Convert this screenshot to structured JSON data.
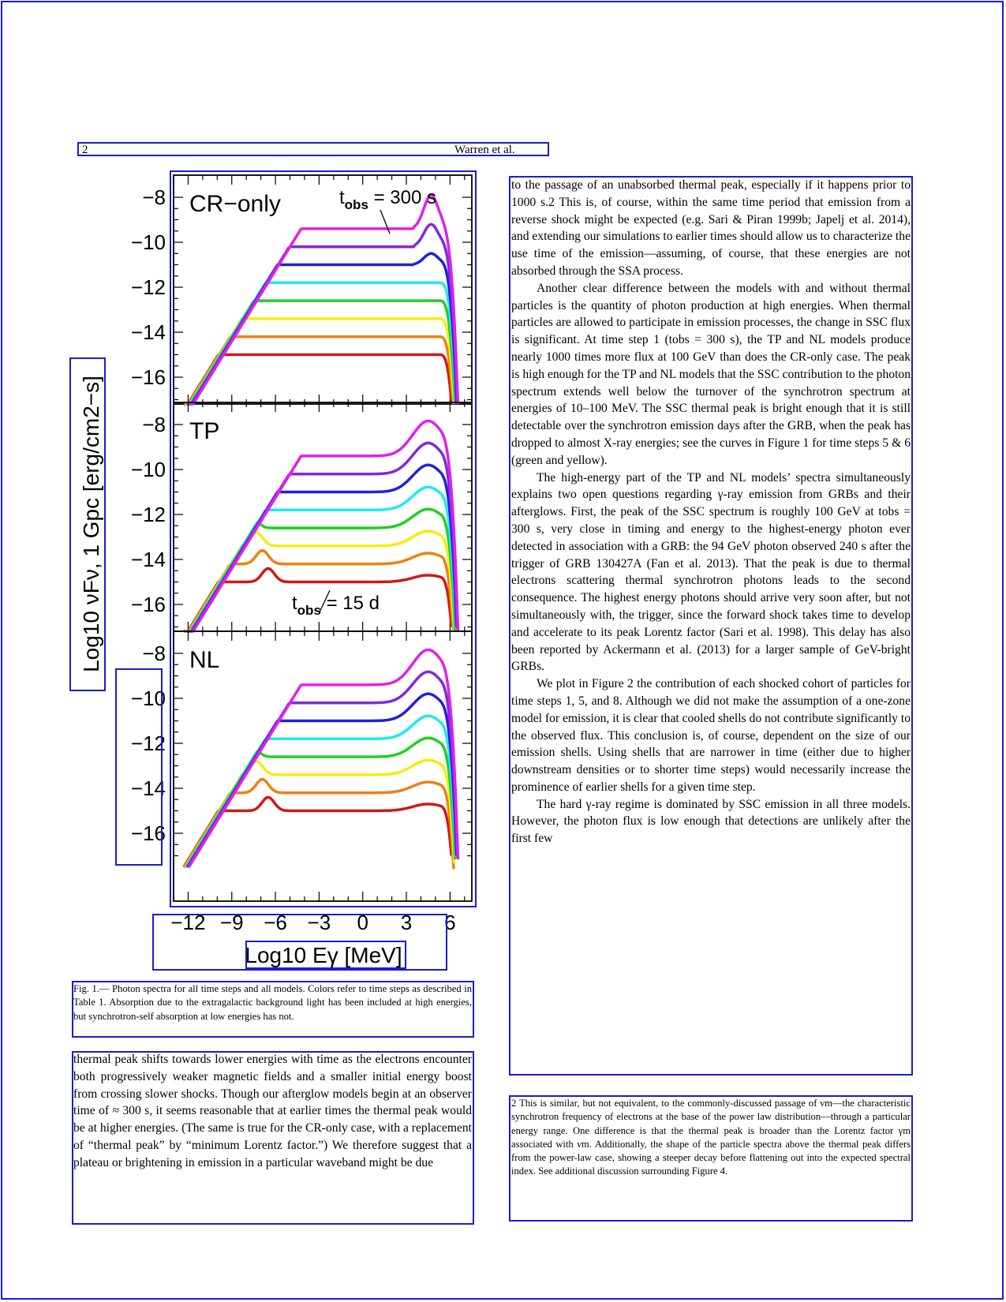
{
  "header": {
    "page_number": "2",
    "running_head": "Warren et al."
  },
  "figure": {
    "panels": [
      {
        "label": "CR−only",
        "annotation": "t",
        "annotation_sub": "obs",
        "annotation_rest": " = 300 s"
      },
      {
        "label": "TP",
        "annotation": "t",
        "annotation_sub": "obs",
        "annotation_rest": " = 15 d"
      },
      {
        "label": "NL"
      }
    ],
    "y_ticks": [
      "−8",
      "−10",
      "−12",
      "−14",
      "−16"
    ],
    "x_ticks": [
      "−12",
      "−9",
      "−6",
      "−3",
      "0",
      "3",
      "6"
    ],
    "ylabel": "Log10 νFν, 1 Gpc [erg/cm2−s]",
    "xlabel": "Log10 Eγ [MeV]",
    "colors": [
      "#d01818",
      "#f08010",
      "#f6ec10",
      "#20d020",
      "#20e8f0",
      "#2020e0",
      "#8028e0",
      "#e020e8"
    ]
  },
  "caption": "Fig. 1.— Photon spectra for all time steps and all models. Colors refer to time steps as described in Table 1. Absorption due to the extragalactic background light has been included at high energies, but synchrotron-self absorption at low energies has not.",
  "left_col": "thermal peak shifts towards lower energies with time as the electrons encounter both progressively weaker magnetic fields and a smaller initial energy boost from crossing slower shocks. Though our afterglow models begin at an observer time of ≈ 300 s, it seems reasonable that at earlier times the thermal peak would be at higher energies. (The same is true for the CR-only case, with a replacement of “thermal peak” by “minimum Lorentz factor.”) We therefore suggest that a plateau or brightening in emission in a particular waveband might be due",
  "right_col": [
    "to the passage of an unabsorbed thermal peak, especially if it happens prior to 1000 s.2 This is, of course, within the same time period that emission from a reverse shock might be expected (e.g. Sari & Piran 1999b; Japelj et al. 2014), and extending our simulations to earlier times should allow us to characterize the use time of the emission—assuming, of course, that these energies are not absorbed through the SSA process.",
    "Another clear difference between the models with and without thermal particles is the quantity of photon production at high energies. When thermal particles are allowed to participate in emission processes, the change in SSC flux is significant. At time step 1 (tobs = 300 s), the TP and NL models produce nearly 1000 times more flux at 100 GeV than does the CR-only case. The peak is high enough for the TP and NL models that the SSC contribution to the photon spectrum extends well below the turnover of the synchrotron spectrum at energies of 10–100 MeV. The SSC thermal peak is bright enough that it is still detectable over the synchrotron emission days after the GRB, when the peak has dropped to almost X-ray energies; see the curves in Figure 1 for time steps 5 & 6 (green and yellow).",
    "The high-energy part of the TP and NL models’ spectra simultaneously explains two open questions regarding γ-ray emission from GRBs and their afterglows. First, the peak of the SSC spectrum is roughly 100 GeV at tobs = 300 s, very close in timing and energy to the highest-energy photon ever detected in association with a GRB: the 94 GeV photon observed 240 s after the trigger of GRB 130427A (Fan et al. 2013). That the peak is due to thermal electrons scattering thermal synchrotron photons leads to the second consequence. The highest energy photons should arrive very soon after, but not simultaneously with, the trigger, since the forward shock takes time to develop and accelerate to its peak Lorentz factor (Sari et al. 1998). This delay has also been reported by Ackermann et al. (2013) for a larger sample of GeV-bright GRBs.",
    "We plot in Figure 2 the contribution of each shocked cohort of particles for time steps 1, 5, and 8. Although we did not make the assumption of a one-zone model for emission, it is clear that cooled shells do not contribute significantly to the observed flux. This conclusion is, of course, dependent on the size of our emission shells. Using shells that are narrower in time (either due to higher downstream densities or to shorter time steps) would necessarily increase the prominence of earlier shells for a given time step.",
    "The hard γ-ray regime is dominated by SSC emission in all three models. However, the photon flux is low enough that detections are unlikely after the first few"
  ],
  "footnote": "2 This is similar, but not equivalent, to the commonly-discussed passage of νm—the characteristic synchrotron frequency of electrons at the base of the power law distribution—through a particular energy range. One difference is that the thermal peak is broader than the Lorentz factor γm associated with νm. Additionally, the shape of the particle spectra above the thermal peak differs from the power-law case, showing a steeper decay before flattening out into the expected spectral index. See additional discussion surrounding Figure 4."
}
